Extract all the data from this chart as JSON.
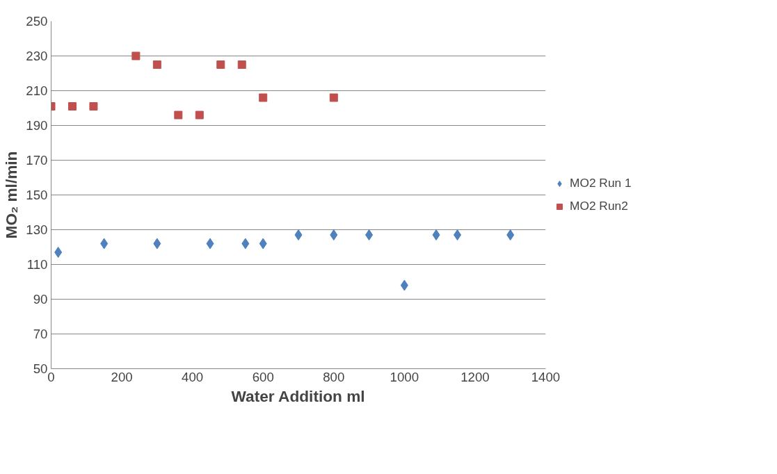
{
  "chart_data": {
    "type": "scatter",
    "xlabel": "Water Addition ml",
    "ylabel": "MO₂ ml/min",
    "xlim": [
      0,
      1400
    ],
    "xticks": [
      0,
      200,
      400,
      600,
      800,
      1000,
      1200,
      1400
    ],
    "ylim": [
      50,
      250
    ],
    "yticks": [
      50,
      70,
      90,
      110,
      130,
      150,
      170,
      190,
      210,
      230,
      250
    ],
    "grid": "y",
    "legend": "right",
    "series": [
      {
        "name": "MO2 Run 1",
        "color": "#4f81bd",
        "marker": "diamond",
        "x": [
          20,
          150,
          300,
          450,
          550,
          600,
          700,
          800,
          900,
          1000,
          1090,
          1150,
          1300
        ],
        "values": [
          117,
          122,
          122,
          122,
          122,
          122,
          127,
          127,
          127,
          98,
          127,
          127,
          127
        ]
      },
      {
        "name": "MO2 Run2",
        "color": "#c0504d",
        "marker": "square",
        "x": [
          0,
          60,
          120,
          240,
          300,
          360,
          420,
          480,
          540,
          600,
          800
        ],
        "values": [
          201,
          201,
          201,
          230,
          225,
          196,
          196,
          225,
          225,
          206,
          206
        ]
      }
    ]
  }
}
